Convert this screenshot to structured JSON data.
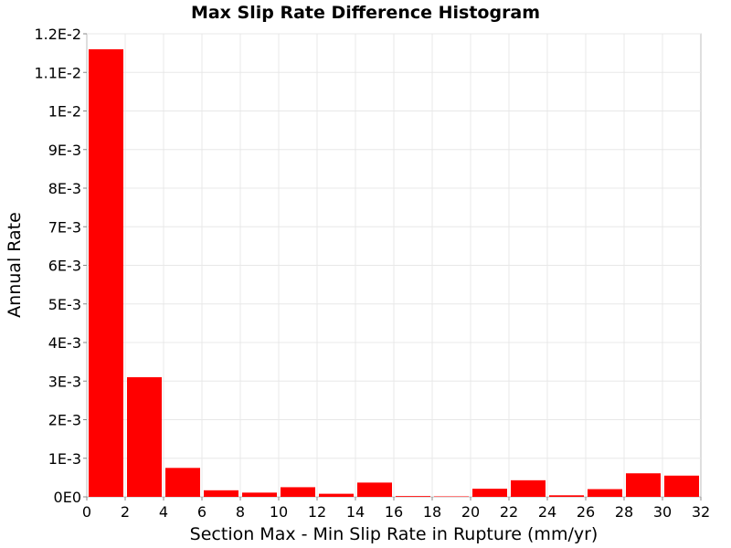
{
  "chart_data": {
    "type": "bar",
    "title": "Max Slip Rate Difference Histogram",
    "xlabel": "Section Max - Min Slip Rate in Rupture (mm/yr)",
    "ylabel": "Annual Rate",
    "xlim": [
      0,
      32
    ],
    "ylim": [
      0,
      0.012
    ],
    "grid": true,
    "bar_color": "#ff0000",
    "bin_width": 2,
    "x_ticks": [
      {
        "value": 0,
        "label": "0"
      },
      {
        "value": 2,
        "label": "2"
      },
      {
        "value": 4,
        "label": "4"
      },
      {
        "value": 6,
        "label": "6"
      },
      {
        "value": 8,
        "label": "8"
      },
      {
        "value": 10,
        "label": "10"
      },
      {
        "value": 12,
        "label": "12"
      },
      {
        "value": 14,
        "label": "14"
      },
      {
        "value": 16,
        "label": "16"
      },
      {
        "value": 18,
        "label": "18"
      },
      {
        "value": 20,
        "label": "20"
      },
      {
        "value": 22,
        "label": "22"
      },
      {
        "value": 24,
        "label": "24"
      },
      {
        "value": 26,
        "label": "26"
      },
      {
        "value": 28,
        "label": "28"
      },
      {
        "value": 30,
        "label": "30"
      },
      {
        "value": 32,
        "label": "32"
      }
    ],
    "y_ticks": [
      {
        "value": 0,
        "label": "0E0"
      },
      {
        "value": 0.001,
        "label": "1E-3"
      },
      {
        "value": 0.002,
        "label": "2E-3"
      },
      {
        "value": 0.003,
        "label": "3E-3"
      },
      {
        "value": 0.004,
        "label": "4E-3"
      },
      {
        "value": 0.005,
        "label": "5E-3"
      },
      {
        "value": 0.006,
        "label": "6E-3"
      },
      {
        "value": 0.007,
        "label": "7E-3"
      },
      {
        "value": 0.008,
        "label": "8E-3"
      },
      {
        "value": 0.009,
        "label": "9E-3"
      },
      {
        "value": 0.01,
        "label": "1E-2"
      },
      {
        "value": 0.011,
        "label": "1.1E-2"
      },
      {
        "value": 0.012,
        "label": "1.2E-2"
      }
    ],
    "bins": [
      {
        "x": 1,
        "value": 0.0116
      },
      {
        "x": 3,
        "value": 0.0031
      },
      {
        "x": 5,
        "value": 0.00075
      },
      {
        "x": 7,
        "value": 0.00017
      },
      {
        "x": 9,
        "value": 0.00011
      },
      {
        "x": 11,
        "value": 0.00025
      },
      {
        "x": 13,
        "value": 8e-05
      },
      {
        "x": 15,
        "value": 0.00037
      },
      {
        "x": 17,
        "value": 2e-05
      },
      {
        "x": 19,
        "value": 1e-05
      },
      {
        "x": 21,
        "value": 0.00021
      },
      {
        "x": 23,
        "value": 0.00043
      },
      {
        "x": 25,
        "value": 4e-05
      },
      {
        "x": 27,
        "value": 0.0002
      },
      {
        "x": 29,
        "value": 0.00061
      },
      {
        "x": 31,
        "value": 0.00055
      }
    ]
  }
}
